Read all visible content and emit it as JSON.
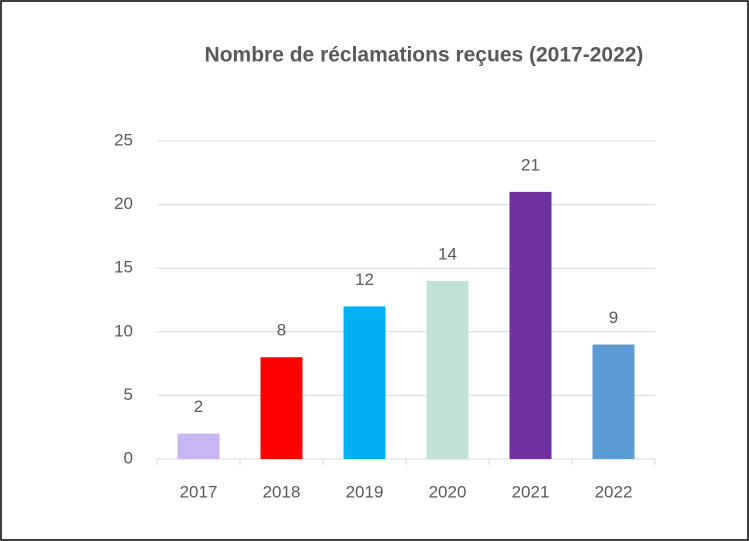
{
  "chart_data": {
    "type": "bar",
    "title": "Nombre de réclamations reçues (2017-2022)",
    "categories": [
      "2017",
      "2018",
      "2019",
      "2020",
      "2021",
      "2022"
    ],
    "values": [
      2,
      8,
      12,
      14,
      21,
      9
    ],
    "colors": [
      "#c9b5f2",
      "#ff0000",
      "#00b0f0",
      "#c1e1d5",
      "#7030a0",
      "#5b9bd5"
    ],
    "ylim": [
      0,
      25
    ],
    "yticks": [
      0,
      5,
      10,
      15,
      20,
      25
    ],
    "grid": true
  }
}
